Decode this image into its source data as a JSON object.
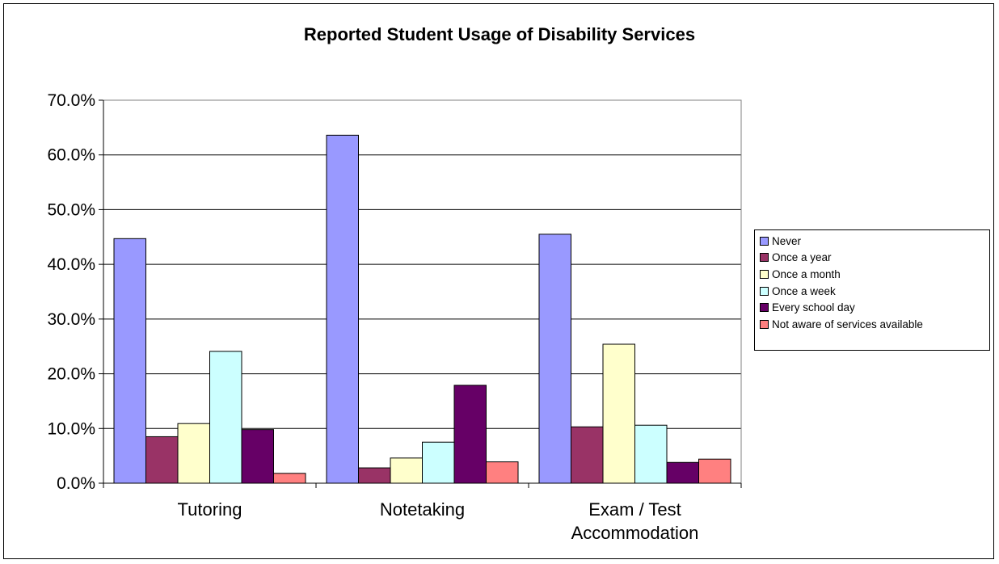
{
  "chart_data": {
    "type": "bar",
    "title": "Reported Student Usage of Disability Services",
    "xlabel": "",
    "ylabel": "",
    "ylim": [
      0,
      0.7
    ],
    "y_ticks": [
      "0.0%",
      "10.0%",
      "20.0%",
      "30.0%",
      "40.0%",
      "50.0%",
      "60.0%",
      "70.0%"
    ],
    "categories": [
      [
        "Tutoring"
      ],
      [
        "Notetaking"
      ],
      [
        "Exam / Test",
        "Accommodation"
      ]
    ],
    "grid": true,
    "legend_position": "right",
    "series": [
      {
        "name": "Never",
        "color": "#9999FF",
        "values": [
          0.447,
          0.636,
          0.455
        ]
      },
      {
        "name": "Once a year",
        "color": "#993366",
        "values": [
          0.085,
          0.028,
          0.103
        ]
      },
      {
        "name": "Once a month",
        "color": "#FFFFCC",
        "values": [
          0.109,
          0.046,
          0.254
        ]
      },
      {
        "name": "Once a week",
        "color": "#CCFFFF",
        "values": [
          0.241,
          0.075,
          0.106
        ]
      },
      {
        "name": "Every school day",
        "color": "#660066",
        "values": [
          0.098,
          0.179,
          0.038
        ]
      },
      {
        "name": "Not aware of services available",
        "color": "#FF8080",
        "values": [
          0.018,
          0.039,
          0.044
        ]
      }
    ]
  }
}
